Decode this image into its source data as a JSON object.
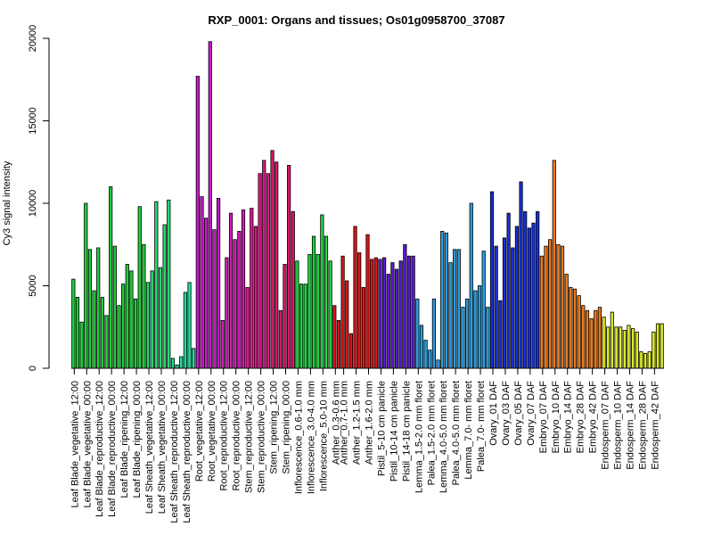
{
  "chart_data": {
    "type": "bar",
    "title": "RXP_0001: Organs and tissues; Os01g0958700_37087",
    "xlabel": "",
    "ylabel": "Cy3 signal intensity",
    "ylim": [
      0,
      20000
    ],
    "y_ticks": [
      0,
      5000,
      10000,
      15000,
      20000
    ],
    "grid": false,
    "legend": "none",
    "groups": [
      {
        "label": "Leaf Blade_vegetative_12:00",
        "color": "#1fcf3a",
        "values": [
          5400,
          4300,
          2800
        ]
      },
      {
        "label": "Leaf Blade_vegetative_00:00",
        "color": "#1fcf3a",
        "values": [
          10000,
          7200,
          4700
        ]
      },
      {
        "label": "Leaf Blade_reproductive_12:00",
        "color": "#1fcf3a",
        "values": [
          7300,
          4300,
          3200
        ]
      },
      {
        "label": "Leaf Blade_reproductive_00:00",
        "color": "#1fcf3a",
        "values": [
          11000,
          7400,
          3800
        ]
      },
      {
        "label": "Leaf Blade_ripening_12:00",
        "color": "#1fcf3a",
        "values": [
          5100,
          6300,
          5900
        ]
      },
      {
        "label": "Leaf Blade_ripening_00:00",
        "color": "#1fcf3a",
        "values": [
          4200,
          9800,
          7500
        ]
      },
      {
        "label": "Leaf Sheath_vegetative_12:00",
        "color": "#22dd6e",
        "values": [
          5200,
          5900,
          10100
        ]
      },
      {
        "label": "Leaf Sheath_vegetative_00:00",
        "color": "#22dd6e",
        "values": [
          6100,
          8700,
          10200
        ]
      },
      {
        "label": "Leaf Sheath_reproductive_12:00",
        "color": "#22dd9e",
        "values": [
          600,
          200,
          700
        ]
      },
      {
        "label": "Leaf Sheath_reproductive_00:00",
        "color": "#22dd9e",
        "values": [
          4600,
          5200,
          1200
        ]
      },
      {
        "label": "Root_vegetative_12:00",
        "color": "#cc1acc",
        "values": [
          17700,
          10400,
          9100
        ]
      },
      {
        "label": "Root_vegetative_00:00",
        "color": "#cc1acc",
        "values": [
          19800,
          8400,
          10300
        ]
      },
      {
        "label": "Root_reproductive_12:00",
        "color": "#d61ab8",
        "values": [
          2900,
          6700,
          9400
        ]
      },
      {
        "label": "Root_reproductive_00:00",
        "color": "#d61ab8",
        "values": [
          7800,
          8300,
          9600
        ]
      },
      {
        "label": "Stem_reproductive_12:00",
        "color": "#e0158a",
        "values": [
          4900,
          9700,
          8600
        ]
      },
      {
        "label": "Stem_reproductive_00:00",
        "color": "#e0158a",
        "values": [
          11800,
          12600,
          11800
        ]
      },
      {
        "label": "Stem_ripening_12:00",
        "color": "#e0156a",
        "values": [
          13200,
          12500,
          3500
        ]
      },
      {
        "label": "Stem_ripening_00:00",
        "color": "#e0156a",
        "values": [
          6300,
          12300,
          9500
        ]
      },
      {
        "label": "Inflorescence_0.6-1.0 mm",
        "color": "#1dd63f",
        "values": [
          6500,
          5100,
          5100
        ]
      },
      {
        "label": "Inflorescence_3.0-4.0 mm",
        "color": "#1dd63f",
        "values": [
          6900,
          8000,
          6900
        ]
      },
      {
        "label": "Inflorescence_5.0-10 mm",
        "color": "#1dd63f",
        "values": [
          9300,
          8000,
          6500
        ]
      },
      {
        "label": "Anther_0.3-0.6 mm",
        "color": "#dd1515",
        "values": [
          3800,
          2900
        ]
      },
      {
        "label": "Anther_0.7-1.0 mm",
        "color": "#dd1515",
        "values": [
          6800,
          5300,
          2100
        ]
      },
      {
        "label": "Anther_1.2-1.5 mm",
        "color": "#dd1515",
        "values": [
          8600,
          7000,
          4900
        ]
      },
      {
        "label": "Anther_1.6-2.0 mm",
        "color": "#dd1515",
        "values": [
          8100,
          6600,
          6700
        ]
      },
      {
        "label": "Pistil_5-10 cm panicle",
        "color": "#5a1ad6",
        "values": [
          6600,
          6700,
          5700
        ]
      },
      {
        "label": "Pistil_10-14 cm panicle",
        "color": "#5a1ad6",
        "values": [
          6400,
          6000,
          6500
        ]
      },
      {
        "label": "Pistil_14-18 cm panicle",
        "color": "#5a1ad6",
        "values": [
          7500,
          6800,
          6800
        ]
      },
      {
        "label": "Lemma_1.5-2.0 mm floret",
        "color": "#2a9ee0",
        "values": [
          4200,
          2600,
          1700
        ]
      },
      {
        "label": "Palea_1.5-2.0 mm floret",
        "color": "#2a9ee0",
        "values": [
          1100,
          4200,
          500
        ]
      },
      {
        "label": "Lemma_4.0-5.0 mm floret",
        "color": "#2a9ee0",
        "values": [
          8300,
          8200,
          6400
        ]
      },
      {
        "label": "Palea_4.0-5.0 mm floret",
        "color": "#2a9ee0",
        "values": [
          7200,
          7200,
          3700
        ]
      },
      {
        "label": "Lemma_7.0- mm floret",
        "color": "#2a9ee0",
        "values": [
          4200,
          10000,
          4700
        ]
      },
      {
        "label": "Palea_7.0- mm floret",
        "color": "#2a9ee0",
        "values": [
          5000,
          7100,
          3700
        ]
      },
      {
        "label": "Ovary_01 DAF",
        "color": "#1530dd",
        "values": [
          10700,
          7400,
          4100
        ]
      },
      {
        "label": "Ovary_03 DAF",
        "color": "#1530dd",
        "values": [
          7900,
          9400,
          7300
        ]
      },
      {
        "label": "Ovary_05 DAF",
        "color": "#1530dd",
        "values": [
          8600,
          11300,
          9500
        ]
      },
      {
        "label": "Ovary_07 DAF",
        "color": "#1530dd",
        "values": [
          8500,
          8800,
          9500
        ]
      },
      {
        "label": "Embryo_07 DAF",
        "color": "#f07a18",
        "values": [
          6800,
          7400,
          7800
        ]
      },
      {
        "label": "Embryo_10 DAF",
        "color": "#f07a18",
        "values": [
          12600,
          7500,
          7400
        ]
      },
      {
        "label": "Embryo_14 DAF",
        "color": "#f07a18",
        "values": [
          5700,
          4900,
          4800
        ]
      },
      {
        "label": "Embryo_28 DAF",
        "color": "#f07a18",
        "values": [
          4400,
          3800,
          3500
        ]
      },
      {
        "label": "Embryo_42 DAF",
        "color": "#f07a18",
        "values": [
          3000,
          3500,
          3700
        ]
      },
      {
        "label": "Endosperm_07 DAF",
        "color": "#ddee22",
        "values": [
          3100,
          2500,
          3400
        ]
      },
      {
        "label": "Endosperm_10 DAF",
        "color": "#ddee22",
        "values": [
          2500,
          2500,
          2300
        ]
      },
      {
        "label": "Endosperm_14 DAF",
        "color": "#ddee22",
        "values": [
          2600,
          2400,
          2200
        ]
      },
      {
        "label": "Endosperm_28 DAF",
        "color": "#ddee22",
        "values": [
          1000,
          900,
          1000
        ]
      },
      {
        "label": "Endosperm_42 DAF",
        "color": "#ddee22",
        "values": [
          2200,
          2700,
          2700
        ]
      }
    ]
  }
}
